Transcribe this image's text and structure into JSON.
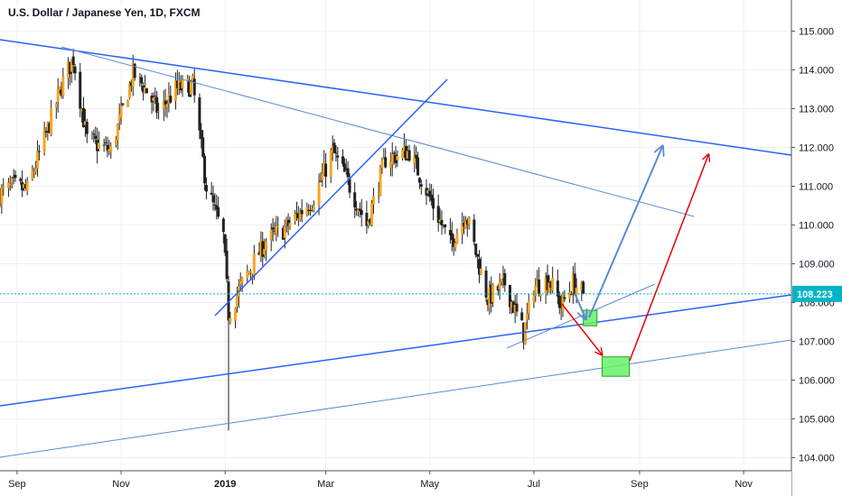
{
  "header": {
    "title": "U.S. Dollar / Japanese Yen, 1D, FXCM"
  },
  "price_scale": {
    "current_price_label": "108.223",
    "current_price": 108.223,
    "tick_labels": [
      "115.000",
      "114.000",
      "113.000",
      "112.000",
      "111.000",
      "110.000",
      "109.000",
      "108.000",
      "107.000",
      "106.000",
      "105.000",
      "104.000"
    ]
  },
  "time_axis": {
    "labels": [
      "Sep",
      "Nov",
      "2019",
      "Mar",
      "May",
      "Jul",
      "Sep",
      "Nov"
    ]
  },
  "colors": {
    "bull": "#f5a623",
    "bear": "#222222",
    "trendline": "#2962ff",
    "trendline_light": "#5b8ad6",
    "price_line": "#00b4c8",
    "price_label_bg": "#00b4c8",
    "box_fill": "#66f266",
    "box_border": "#2ca02c",
    "arrow_red": "#e60000",
    "arrow_blue": "#5b8ad6"
  },
  "chart_data": {
    "type": "candlestick",
    "title": "U.S. Dollar / Japanese Yen, 1D, FXCM",
    "y_range": [
      103.7,
      115.7
    ],
    "last_price": 108.223,
    "close_path": [
      [
        "2018-08-22",
        110.8
      ],
      [
        "2018-08-30",
        111.0
      ],
      [
        "2018-09-07",
        110.9
      ],
      [
        "2018-09-17",
        112.2
      ],
      [
        "2018-09-28",
        113.7
      ],
      [
        "2018-10-04",
        114.3
      ],
      [
        "2018-10-12",
        112.2
      ],
      [
        "2018-10-26",
        111.9
      ],
      [
        "2018-11-08",
        113.9
      ],
      [
        "2018-11-14",
        113.6
      ],
      [
        "2018-11-23",
        112.9
      ],
      [
        "2018-12-03",
        113.5
      ],
      [
        "2018-12-13",
        113.6
      ],
      [
        "2018-12-21",
        111.0
      ],
      [
        "2018-12-31",
        109.7
      ],
      [
        "2019-01-03",
        107.7
      ],
      [
        "2019-01-10",
        108.4
      ],
      [
        "2019-01-25",
        109.6
      ],
      [
        "2019-02-05",
        109.9
      ],
      [
        "2019-02-22",
        110.7
      ],
      [
        "2019-03-05",
        111.9
      ],
      [
        "2019-03-12",
        111.3
      ],
      [
        "2019-03-25",
        110.0
      ],
      [
        "2019-04-05",
        111.7
      ],
      [
        "2019-04-19",
        111.9
      ],
      [
        "2019-04-26",
        111.2
      ],
      [
        "2019-05-13",
        109.5
      ],
      [
        "2019-05-22",
        110.3
      ],
      [
        "2019-06-04",
        108.1
      ],
      [
        "2019-06-14",
        108.5
      ],
      [
        "2019-06-25",
        107.2
      ],
      [
        "2019-07-01",
        108.4
      ],
      [
        "2019-07-10",
        108.6
      ],
      [
        "2019-07-17",
        107.9
      ],
      [
        "2019-07-24",
        108.5
      ],
      [
        "2019-07-30",
        108.223
      ]
    ],
    "annotations": {
      "buy_zone_upper": {
        "label": "",
        "from": "2019-07-30",
        "to": "2019-08-07",
        "low": 107.4,
        "high": 107.8
      },
      "buy_zone_lower": {
        "label": "",
        "from": "2019-08-10",
        "to": "2019-08-26",
        "low": 106.1,
        "high": 106.6
      },
      "blue_arrow_target": {
        "date": "2019-08-28",
        "price": 112.0
      },
      "red_arrow_target": {
        "date": "2019-10-01",
        "price": 111.8
      }
    }
  }
}
